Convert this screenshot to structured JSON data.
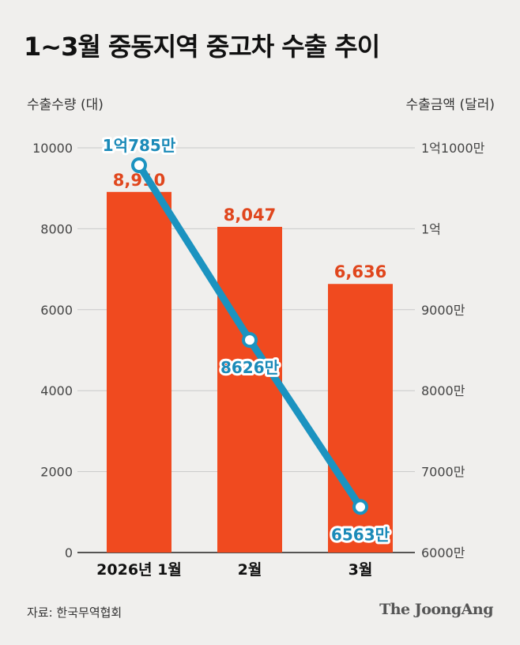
{
  "title": "1~3월 중동지역 중고차 수출 추이",
  "source": "자료: 한국무역협회",
  "brand": "The JoongAng",
  "colors": {
    "bar": "#f04a1f",
    "bar_label": "#e0461d",
    "line": "#1b93c0",
    "line_label": "#1b8ab8",
    "grid": "#c9c9c9",
    "axis_text": "#444444"
  },
  "chart_data": {
    "type": "bar+line",
    "categories": [
      "2026년 1월",
      "2월",
      "3월"
    ],
    "ylabel_left": "수출수량 (대)",
    "ylabel_right": "수출금액 (달러)",
    "left_axis": {
      "ylim": [
        0,
        10000
      ],
      "ticks": [
        0,
        2000,
        4000,
        6000,
        8000,
        10000
      ],
      "tick_labels": [
        "0",
        "2000",
        "4000",
        "6000",
        "8000",
        "10000"
      ]
    },
    "right_axis": {
      "ylim": [
        60000000,
        110000000
      ],
      "ticks": [
        60000000,
        70000000,
        80000000,
        90000000,
        100000000,
        110000000
      ],
      "tick_labels": [
        "6000만",
        "7000만",
        "8000만",
        "9000만",
        "1억",
        "1억1000만"
      ]
    },
    "grid": true,
    "series": [
      {
        "type": "bar",
        "axis": "left",
        "values": [
          8910,
          8047,
          6636
        ],
        "labels": [
          "8,910",
          "8,047",
          "6,636"
        ]
      },
      {
        "type": "line",
        "axis": "right",
        "values": [
          107850000,
          86260000,
          65630000
        ],
        "labels": [
          "1억785만",
          "8626만",
          "6563만"
        ]
      }
    ]
  }
}
